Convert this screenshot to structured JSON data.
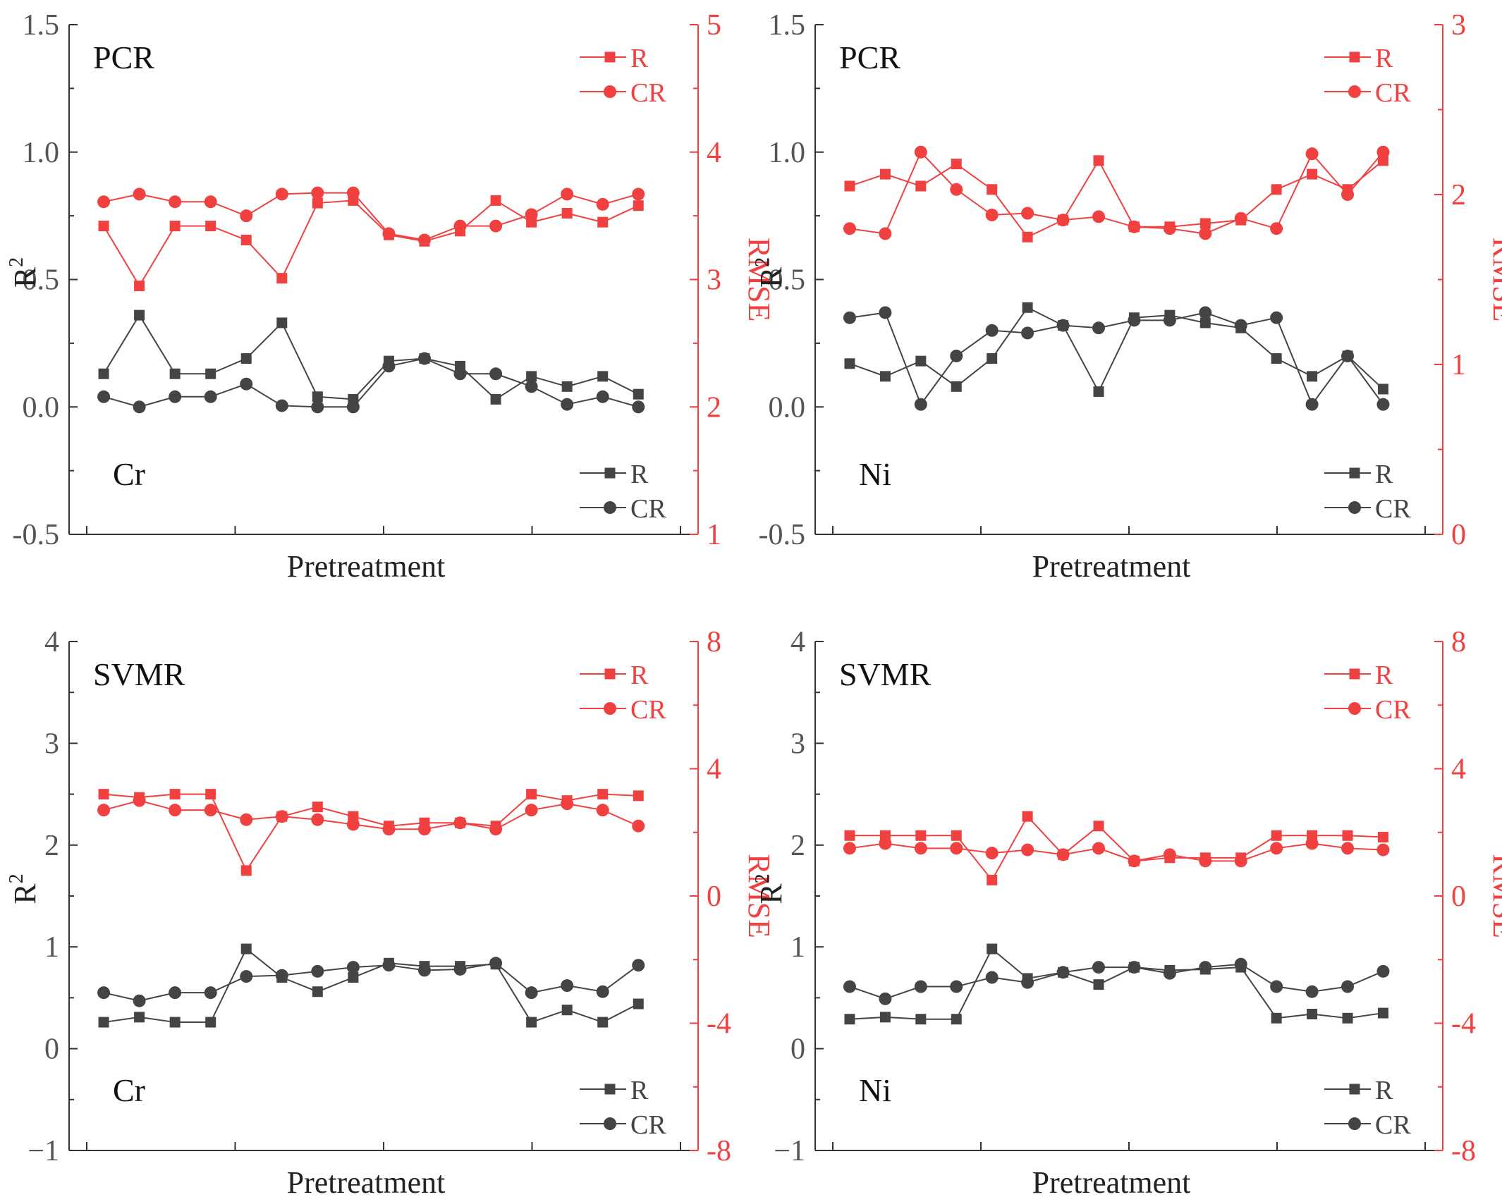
{
  "colors": {
    "left_series": "#444444",
    "right_series": "#f04040",
    "axis": "#333333"
  },
  "chart_data": [
    {
      "type": "line",
      "id": "pcr-cr",
      "title": "PCR",
      "element": "Cr",
      "xlabel": "Pretreatment",
      "ylabel": "R",
      "ylabel_sup": "2",
      "y2label": "RMSE",
      "ylim": [
        -0.5,
        1.5
      ],
      "yticks": [
        -0.5,
        0.0,
        0.5,
        1.0,
        1.5
      ],
      "ytick_labels": [
        "-0.5",
        "0.0",
        "0.5",
        "1.0",
        "1.5"
      ],
      "y2lim": [
        1,
        5
      ],
      "y2ticks": [
        1,
        2,
        3,
        4,
        5
      ],
      "y2tick_labels": [
        "1",
        "2",
        "3",
        "4",
        "5"
      ],
      "legend_right": [
        "R",
        "CR"
      ],
      "legend_left": [
        "R",
        "CR"
      ],
      "series_left": [
        {
          "name": "R",
          "marker": "square",
          "values": [
            0.13,
            0.36,
            0.13,
            0.13,
            0.19,
            0.33,
            0.04,
            0.03,
            0.18,
            0.19,
            0.16,
            0.03,
            0.12,
            0.08,
            0.12,
            0.05
          ]
        },
        {
          "name": "CR",
          "marker": "circle",
          "values": [
            0.04,
            0.0,
            0.04,
            0.04,
            0.09,
            0.005,
            0.0,
            0.0,
            0.16,
            0.19,
            0.13,
            0.13,
            0.08,
            0.01,
            0.04,
            0.0
          ]
        }
      ],
      "series_right": [
        {
          "name": "R",
          "marker": "square",
          "values": [
            3.42,
            2.95,
            3.42,
            3.42,
            3.31,
            3.01,
            3.6,
            3.62,
            3.35,
            3.3,
            3.38,
            3.62,
            3.45,
            3.52,
            3.45,
            3.58
          ]
        },
        {
          "name": "CR",
          "marker": "circle",
          "values": [
            3.61,
            3.67,
            3.61,
            3.61,
            3.5,
            3.67,
            3.68,
            3.68,
            3.36,
            3.31,
            3.42,
            3.42,
            3.51,
            3.67,
            3.59,
            3.67
          ]
        }
      ]
    },
    {
      "type": "line",
      "id": "pcr-ni",
      "title": "PCR",
      "element": "Ni",
      "xlabel": "Pretreatment",
      "ylabel": "R",
      "ylabel_sup": "2",
      "y2label": "RMSE",
      "ylim": [
        -0.5,
        1.5
      ],
      "yticks": [
        -0.5,
        0.0,
        0.5,
        1.0,
        1.5
      ],
      "ytick_labels": [
        "-0.5",
        "0.0",
        "0.5",
        "1.0",
        "1.5"
      ],
      "y2lim": [
        0,
        3
      ],
      "y2ticks": [
        0,
        1,
        2,
        3
      ],
      "y2tick_labels": [
        "0",
        "1",
        "2",
        "3"
      ],
      "legend_right": [
        "R",
        "CR"
      ],
      "legend_left": [
        "R",
        "CR"
      ],
      "series_left": [
        {
          "name": "R",
          "marker": "square",
          "values": [
            0.17,
            0.12,
            0.18,
            0.08,
            0.19,
            0.39,
            0.32,
            0.06,
            0.35,
            0.36,
            0.33,
            0.31,
            0.19,
            0.12,
            0.2,
            0.07
          ]
        },
        {
          "name": "CR",
          "marker": "circle",
          "values": [
            0.35,
            0.37,
            0.01,
            0.2,
            0.3,
            0.29,
            0.32,
            0.31,
            0.34,
            0.34,
            0.37,
            0.32,
            0.35,
            0.01,
            0.2,
            0.01
          ]
        }
      ],
      "series_right": [
        {
          "name": "R",
          "marker": "square",
          "values": [
            2.05,
            2.12,
            2.05,
            2.18,
            2.03,
            1.75,
            1.85,
            2.2,
            1.81,
            1.81,
            1.83,
            1.85,
            2.03,
            2.12,
            2.03,
            2.2
          ]
        },
        {
          "name": "CR",
          "marker": "circle",
          "values": [
            1.8,
            1.77,
            2.25,
            2.03,
            1.88,
            1.89,
            1.85,
            1.87,
            1.81,
            1.8,
            1.77,
            1.86,
            1.8,
            2.24,
            2.0,
            2.25
          ]
        }
      ]
    },
    {
      "type": "line",
      "id": "svmr-cr",
      "title": "SVMR",
      "element": "Cr",
      "xlabel": "Pretreatment",
      "ylabel": "R",
      "ylabel_sup": "2",
      "y2label": "RMSE",
      "ylim": [
        -1,
        4
      ],
      "yticks": [
        -1,
        0,
        1,
        2,
        3,
        4
      ],
      "ytick_labels": [
        "−1",
        "0",
        "1",
        "2",
        "3",
        "4"
      ],
      "y2lim": [
        -8,
        8
      ],
      "y2ticks": [
        -8,
        -4,
        0,
        4,
        8
      ],
      "y2tick_labels": [
        "-8",
        "-4",
        "0",
        "4",
        "8"
      ],
      "legend_right": [
        "R",
        "CR"
      ],
      "legend_left": [
        "R",
        "CR"
      ],
      "series_left": [
        {
          "name": "R",
          "marker": "square",
          "values": [
            0.26,
            0.31,
            0.26,
            0.26,
            0.98,
            0.7,
            0.56,
            0.7,
            0.84,
            0.81,
            0.81,
            0.83,
            0.26,
            0.38,
            0.26,
            0.44
          ]
        },
        {
          "name": "CR",
          "marker": "circle",
          "values": [
            0.55,
            0.47,
            0.55,
            0.55,
            0.71,
            0.72,
            0.76,
            0.8,
            0.82,
            0.77,
            0.78,
            0.84,
            0.55,
            0.62,
            0.56,
            0.82
          ]
        }
      ],
      "series_right": [
        {
          "name": "R",
          "marker": "square",
          "values": [
            3.2,
            3.1,
            3.2,
            3.2,
            0.8,
            2.5,
            2.8,
            2.5,
            2.2,
            2.3,
            2.3,
            2.2,
            3.2,
            3.0,
            3.2,
            3.15
          ]
        },
        {
          "name": "CR",
          "marker": "circle",
          "values": [
            2.7,
            3.0,
            2.7,
            2.7,
            2.4,
            2.5,
            2.4,
            2.25,
            2.1,
            2.1,
            2.3,
            2.1,
            2.7,
            2.9,
            2.7,
            2.2
          ]
        }
      ]
    },
    {
      "type": "line",
      "id": "svmr-ni",
      "title": "SVMR",
      "element": "Ni",
      "xlabel": "Pretreatment",
      "ylabel": "R",
      "ylabel_sup": "2",
      "y2label": "RMSE",
      "ylim": [
        -1,
        4
      ],
      "yticks": [
        -1,
        0,
        1,
        2,
        3,
        4
      ],
      "ytick_labels": [
        "−1",
        "0",
        "1",
        "2",
        "3",
        "4"
      ],
      "y2lim": [
        -8,
        8
      ],
      "y2ticks": [
        -8,
        -4,
        0,
        4,
        8
      ],
      "y2tick_labels": [
        "-8",
        "-4",
        "0",
        "4",
        "8"
      ],
      "legend_right": [
        "R",
        "CR"
      ],
      "legend_left": [
        "R",
        "CR"
      ],
      "series_left": [
        {
          "name": "R",
          "marker": "square",
          "values": [
            0.29,
            0.31,
            0.29,
            0.29,
            0.98,
            0.69,
            0.75,
            0.63,
            0.8,
            0.77,
            0.78,
            0.8,
            0.3,
            0.34,
            0.3,
            0.35
          ]
        },
        {
          "name": "CR",
          "marker": "circle",
          "values": [
            0.61,
            0.49,
            0.61,
            0.61,
            0.7,
            0.65,
            0.75,
            0.8,
            0.8,
            0.74,
            0.8,
            0.83,
            0.61,
            0.56,
            0.61,
            0.76
          ]
        }
      ],
      "series_right": [
        {
          "name": "R",
          "marker": "square",
          "values": [
            1.9,
            1.9,
            1.9,
            1.9,
            0.5,
            2.5,
            1.3,
            2.2,
            1.1,
            1.2,
            1.2,
            1.2,
            1.9,
            1.9,
            1.9,
            1.85
          ]
        },
        {
          "name": "CR",
          "marker": "circle",
          "values": [
            1.5,
            1.65,
            1.5,
            1.5,
            1.35,
            1.45,
            1.3,
            1.5,
            1.1,
            1.3,
            1.1,
            1.1,
            1.5,
            1.65,
            1.5,
            1.45
          ]
        }
      ]
    }
  ]
}
